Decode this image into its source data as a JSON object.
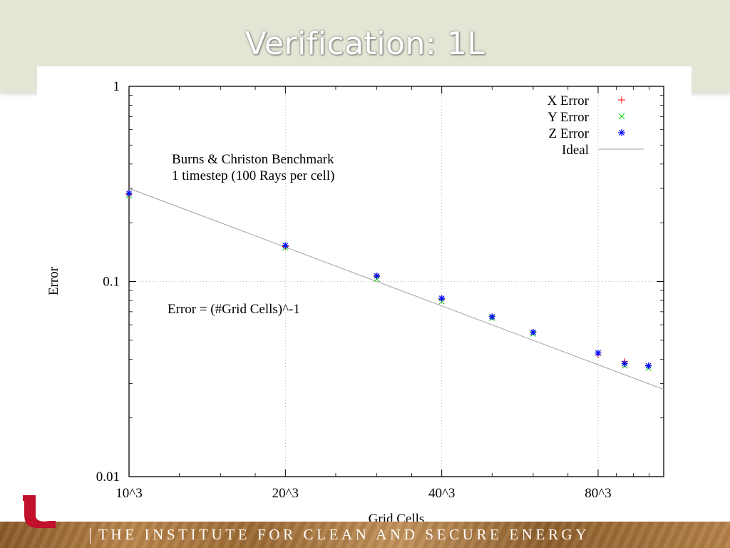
{
  "slide": {
    "title": "Verification: 1L",
    "footer": "THE INSTITUTE FOR CLEAN AND SECURE ENERGY"
  },
  "colors": {
    "x_error": "#ff0000",
    "y_error": "#00cc00",
    "z_error": "#0000ff",
    "ideal": "#a0a0a0",
    "logo": "#c0102b"
  },
  "chart_data": {
    "type": "scatter",
    "x_scale": "log",
    "y_scale": "log",
    "xlabel": "Grid Cells",
    "ylabel": "Error",
    "xlim": [
      10,
      107
    ],
    "ylim": [
      0.01,
      1
    ],
    "x_ticks": [
      {
        "value": 10,
        "label": "10^3"
      },
      {
        "value": 20,
        "label": "20^3"
      },
      {
        "value": 40,
        "label": "40^3"
      },
      {
        "value": 80,
        "label": "80^3"
      }
    ],
    "y_ticks": [
      {
        "value": 0.01,
        "label": "0.01"
      },
      {
        "value": 0.1,
        "label": "0.1"
      },
      {
        "value": 1,
        "label": "1"
      }
    ],
    "grid": true,
    "legend_position": "top-right",
    "annotations": [
      "Burns & Christon Benchmark",
      "1 timestep (100 Rays per cell)",
      "Error = (#Grid Cells)^-1"
    ],
    "series": [
      {
        "name": "X Error",
        "marker": "+",
        "x": [
          10,
          20,
          30,
          40,
          50,
          60,
          80,
          90,
          100
        ],
        "y": [
          0.28,
          0.151,
          0.106,
          0.081,
          0.066,
          0.055,
          0.042,
          0.039,
          0.037
        ]
      },
      {
        "name": "Y Error",
        "marker": "x",
        "x": [
          10,
          20,
          30,
          40,
          50,
          60,
          80,
          90,
          100
        ],
        "y": [
          0.276,
          0.149,
          0.103,
          0.079,
          0.065,
          0.054,
          0.043,
          0.037,
          0.036
        ]
      },
      {
        "name": "Z Error",
        "marker": "*",
        "x": [
          10,
          20,
          30,
          40,
          50,
          60,
          80,
          90,
          100
        ],
        "y": [
          0.283,
          0.153,
          0.107,
          0.082,
          0.066,
          0.055,
          0.043,
          0.038,
          0.037
        ]
      },
      {
        "name": "Ideal",
        "type": "line",
        "x": [
          10,
          107
        ],
        "y": [
          0.3,
          0.028
        ]
      }
    ]
  }
}
